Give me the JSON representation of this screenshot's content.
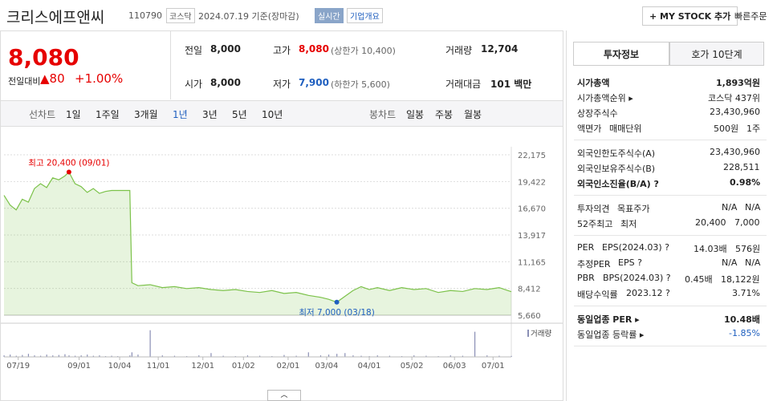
{
  "header": {
    "title": "크리스에프앤씨",
    "code": "110790",
    "market": "코스닥",
    "date": "2024.07.19 기준(장마감)",
    "realtime": "실시간",
    "overview": "기업개요",
    "mystock": "+ MY STOCK 추가",
    "quick_order": "빠른주문"
  },
  "quote": {
    "price": "8,080",
    "change_label": "전일대비",
    "change": "▲80",
    "change_pct": "+1.00%"
  },
  "summary": [
    [
      {
        "label": "전일",
        "value": "8,000"
      },
      {
        "label": "고가",
        "value": "8,080",
        "sub": "(상한가 10,400)",
        "color": "red"
      },
      {
        "label": "거래량",
        "value": "12,704"
      }
    ],
    [
      {
        "label": "시가",
        "value": "8,000"
      },
      {
        "label": "저가",
        "value": "7,900",
        "sub": "(하한가 5,600)",
        "color": "blue"
      },
      {
        "label": "거래대금",
        "value": "101 백만"
      }
    ]
  ],
  "periods": {
    "line_label": "선차트",
    "line": [
      "1일",
      "1주일",
      "3개월",
      "1년",
      "3년",
      "5년",
      "10년"
    ],
    "active": "1년",
    "candle_label": "봉차트",
    "candle": [
      "일봉",
      "주봉",
      "월봉"
    ]
  },
  "panel": {
    "tabs": [
      "투자정보",
      "호가 10단계"
    ],
    "groups": [
      [
        {
          "labels": [
            "시가총액"
          ],
          "values": [
            "1,893억원"
          ],
          "bold": true
        },
        {
          "labels": [
            "시가총액순위 ▸"
          ],
          "values": [
            "코스닥 437위"
          ]
        },
        {
          "labels": [
            "상장주식수"
          ],
          "values": [
            "23,430,960"
          ]
        },
        {
          "labels": [
            "액면가",
            "매매단위"
          ],
          "values": [
            "500원",
            "1주"
          ]
        }
      ],
      [
        {
          "labels": [
            "외국인한도주식수(A)"
          ],
          "values": [
            "23,430,960"
          ]
        },
        {
          "labels": [
            "외국인보유주식수(B)"
          ],
          "values": [
            "228,511"
          ]
        },
        {
          "labels": [
            "외국인소진율(B/A) ?"
          ],
          "values": [
            "0.98%"
          ],
          "bold": true
        }
      ],
      [
        {
          "labels": [
            "투자의견",
            "목표주가"
          ],
          "values": [
            "N/A",
            "N/A"
          ]
        },
        {
          "labels": [
            "52주최고",
            "최저"
          ],
          "values": [
            "20,400",
            "7,000"
          ]
        }
      ],
      [
        {
          "labels": [
            "PER",
            "EPS(2024.03) ?"
          ],
          "values": [
            "14.03배",
            "576원"
          ]
        },
        {
          "labels": [
            "추정PER",
            "EPS ?"
          ],
          "values": [
            "N/A",
            "N/A"
          ]
        },
        {
          "labels": [
            "PBR",
            "BPS(2024.03) ?"
          ],
          "values": [
            "0.45배",
            "18,122원"
          ]
        },
        {
          "labels": [
            "배당수익률",
            "2023.12 ?"
          ],
          "values": [
            "3.71%"
          ]
        }
      ],
      [
        {
          "labels": [
            "동일업종 PER ▸"
          ],
          "values": [
            "10.48배"
          ],
          "bold": true
        },
        {
          "labels": [
            "동일업종 등락률 ▸"
          ],
          "values": [
            "-1.85%"
          ],
          "color": "blue"
        }
      ]
    ]
  },
  "chart_data": [
    {
      "type": "line",
      "x": [
        0,
        3,
        6,
        9,
        12,
        15,
        18,
        21,
        24,
        27,
        30,
        32,
        35,
        38,
        41,
        44,
        47,
        50,
        53,
        56,
        62,
        63,
        66,
        72,
        78,
        84,
        90,
        96,
        102,
        108,
        114,
        120,
        126,
        132,
        138,
        144,
        150,
        156,
        160,
        164,
        168,
        172,
        176,
        180,
        184,
        190,
        196,
        202,
        208,
        214,
        220,
        226,
        232,
        238,
        244,
        250
      ],
      "series": [
        {
          "name": "주가",
          "color": "#7cc24a",
          "values": [
            18000,
            17000,
            16500,
            17600,
            17300,
            18700,
            19200,
            18800,
            19800,
            19600,
            20000,
            20400,
            19200,
            18900,
            18300,
            18700,
            18200,
            18400,
            18500,
            18500,
            18500,
            9000,
            8700,
            8800,
            8500,
            8600,
            8400,
            8500,
            8300,
            8200,
            8300,
            8100,
            8000,
            8200,
            7900,
            8000,
            7700,
            7500,
            7300,
            7000,
            7600,
            8200,
            8600,
            8300,
            8500,
            8200,
            8500,
            8300,
            8400,
            8000,
            8200,
            8100,
            8400,
            8300,
            8500,
            8080
          ]
        }
      ],
      "xlim": [
        0,
        250
      ],
      "ylim": [
        5660,
        22175
      ],
      "xticks": [
        {
          "value": 7,
          "label": "07/19"
        },
        {
          "value": 37,
          "label": "09/01"
        },
        {
          "value": 57,
          "label": "10/04"
        },
        {
          "value": 76,
          "label": "11/01"
        },
        {
          "value": 98,
          "label": "12/01"
        },
        {
          "value": 118,
          "label": "01/02"
        },
        {
          "value": 140,
          "label": "02/01"
        },
        {
          "value": 159,
          "label": "03/04"
        },
        {
          "value": 180,
          "label": "04/01"
        },
        {
          "value": 201,
          "label": "05/02"
        },
        {
          "value": 222,
          "label": "06/03"
        },
        {
          "value": 241,
          "label": "07/01"
        }
      ],
      "yticks": [
        {
          "value": 22175,
          "label": "22,175"
        },
        {
          "value": 19422,
          "label": "19,422"
        },
        {
          "value": 16670,
          "label": "16,670"
        },
        {
          "value": 13917,
          "label": "13,917"
        },
        {
          "value": 11165,
          "label": "11,165"
        },
        {
          "value": 8412,
          "label": "8,412"
        },
        {
          "value": 5660,
          "label": "5,660"
        }
      ],
      "grid": true,
      "annotations": [
        {
          "text": "최고 20,400 (09/01)",
          "x": 32,
          "y": 20400,
          "color": "#e60000"
        },
        {
          "text": "최저 7,000 (03/18)",
          "x": 164,
          "y": 7000,
          "color": "#1f5fbf"
        }
      ]
    },
    {
      "type": "bar",
      "title": "거래량",
      "x": [
        0,
        3,
        6,
        9,
        12,
        15,
        18,
        21,
        24,
        27,
        30,
        32,
        35,
        38,
        41,
        44,
        47,
        50,
        53,
        56,
        62,
        63,
        66,
        72,
        78,
        84,
        90,
        96,
        102,
        108,
        114,
        120,
        126,
        132,
        138,
        144,
        150,
        156,
        160,
        164,
        168,
        172,
        176,
        180,
        184,
        190,
        196,
        202,
        208,
        214,
        220,
        226,
        232,
        238,
        244,
        250
      ],
      "series": [
        {
          "name": "거래량",
          "color": "#8a8fb5",
          "values": [
            20000,
            30000,
            15000,
            25000,
            40000,
            20000,
            15000,
            30000,
            20000,
            25000,
            35000,
            20000,
            15000,
            20000,
            30000,
            15000,
            20000,
            10000,
            15000,
            10000,
            20000,
            60000,
            30000,
            350000,
            20000,
            15000,
            10000,
            20000,
            50000,
            15000,
            10000,
            20000,
            15000,
            10000,
            25000,
            15000,
            60000,
            20000,
            30000,
            40000,
            50000,
            20000,
            15000,
            10000,
            20000,
            15000,
            10000,
            20000,
            15000,
            10000,
            20000,
            15000,
            330000,
            20000,
            15000,
            12704
          ]
        }
      ],
      "xlim": [
        0,
        250
      ],
      "ylim": [
        0,
        400000
      ]
    }
  ]
}
